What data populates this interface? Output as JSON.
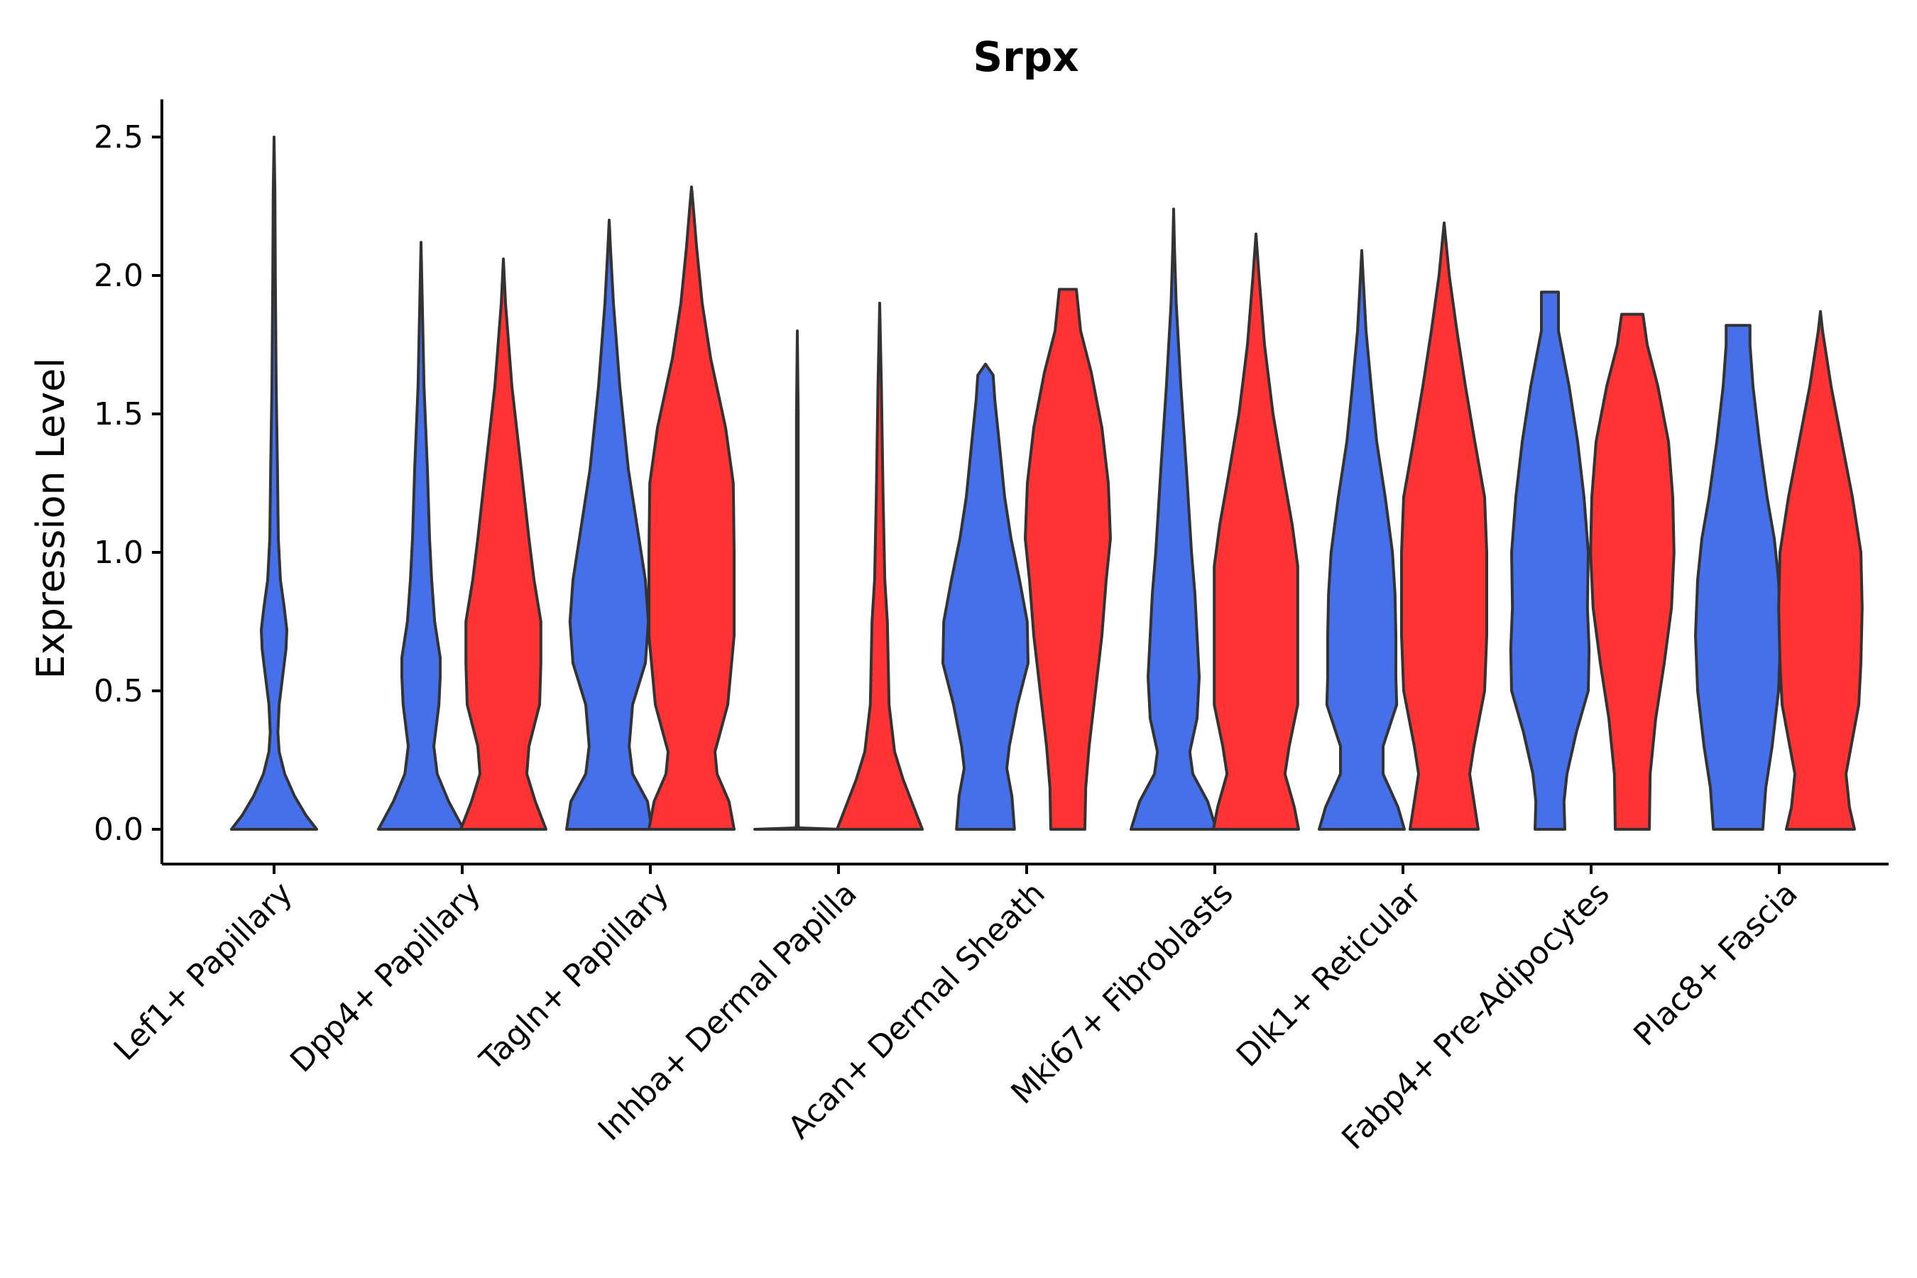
{
  "chart_data": {
    "type": "violin",
    "title": "Srpx",
    "ylabel": "Expression Level",
    "xlabel": "",
    "ylim": [
      0,
      2.5
    ],
    "yticks": [
      "0.0",
      "0.5",
      "1.0",
      "1.5",
      "2.0",
      "2.5"
    ],
    "grid": false,
    "legend": "none",
    "categories": [
      "Lef1+ Papillary",
      "Dpp4+ Papillary",
      "Tagln+ Papillary",
      "Inhba+ Dermal Papilla",
      "Acan+ Dermal Sheath",
      "Mki67+ Fibroblasts",
      "Dlk1+ Reticular",
      "Fabp4+ Pre-Adipocytes",
      "Plac8+ Fascia"
    ],
    "series": [
      {
        "name": "blue",
        "color": "#4570EA",
        "violins": [
          {
            "category": "Lef1+ Papillary",
            "max": 2.5,
            "profile": [
              [
                0,
                1
              ],
              [
                0.05,
                0.75
              ],
              [
                0.12,
                0.48
              ],
              [
                0.2,
                0.25
              ],
              [
                0.28,
                0.12
              ],
              [
                0.35,
                0.09
              ],
              [
                0.45,
                0.12
              ],
              [
                0.55,
                0.2
              ],
              [
                0.65,
                0.28
              ],
              [
                0.72,
                0.3
              ],
              [
                0.8,
                0.24
              ],
              [
                0.9,
                0.15
              ],
              [
                1.05,
                0.1
              ],
              [
                1.3,
                0.08
              ],
              [
                1.6,
                0.05
              ],
              [
                2.0,
                0.03
              ],
              [
                2.3,
                0.02
              ],
              [
                2.5,
                0
              ]
            ]
          },
          {
            "category": "Dpp4+ Papillary",
            "max": 2.12,
            "profile": [
              [
                0,
                1
              ],
              [
                0.1,
                0.65
              ],
              [
                0.2,
                0.38
              ],
              [
                0.3,
                0.3
              ],
              [
                0.45,
                0.42
              ],
              [
                0.55,
                0.45
              ],
              [
                0.62,
                0.45
              ],
              [
                0.75,
                0.32
              ],
              [
                0.9,
                0.25
              ],
              [
                1.05,
                0.2
              ],
              [
                1.3,
                0.15
              ],
              [
                1.6,
                0.07
              ],
              [
                1.9,
                0.03
              ],
              [
                2.12,
                0
              ]
            ]
          },
          {
            "category": "Tagln+ Papillary",
            "max": 2.2,
            "profile": [
              [
                0,
                1
              ],
              [
                0.1,
                0.9
              ],
              [
                0.2,
                0.55
              ],
              [
                0.3,
                0.47
              ],
              [
                0.45,
                0.55
              ],
              [
                0.6,
                0.85
              ],
              [
                0.75,
                0.92
              ],
              [
                0.9,
                0.85
              ],
              [
                1.05,
                0.7
              ],
              [
                1.3,
                0.45
              ],
              [
                1.6,
                0.25
              ],
              [
                1.9,
                0.1
              ],
              [
                2.1,
                0.03
              ],
              [
                2.2,
                0
              ]
            ]
          },
          {
            "category": "Inhba+ Dermal Papilla",
            "max": 1.8,
            "profile": [
              [
                0,
                1
              ],
              [
                0.005,
                0.03
              ],
              [
                0.02,
                0.02
              ],
              [
                0.5,
                0.02
              ],
              [
                1.0,
                0.02
              ],
              [
                1.5,
                0.02
              ],
              [
                1.8,
                0
              ]
            ]
          },
          {
            "category": "Acan+ Dermal Sheath",
            "max": 1.68,
            "profile": [
              [
                0,
                0.68
              ],
              [
                0.12,
                0.62
              ],
              [
                0.22,
                0.5
              ],
              [
                0.3,
                0.56
              ],
              [
                0.45,
                0.75
              ],
              [
                0.6,
                1.0
              ],
              [
                0.75,
                0.98
              ],
              [
                0.9,
                0.8
              ],
              [
                1.05,
                0.6
              ],
              [
                1.2,
                0.45
              ],
              [
                1.4,
                0.32
              ],
              [
                1.55,
                0.22
              ],
              [
                1.64,
                0.18
              ],
              [
                1.68,
                0
              ]
            ]
          },
          {
            "category": "Mki67+ Fibroblasts",
            "max": 2.24,
            "profile": [
              [
                0,
                1
              ],
              [
                0.1,
                0.8
              ],
              [
                0.2,
                0.45
              ],
              [
                0.28,
                0.38
              ],
              [
                0.4,
                0.55
              ],
              [
                0.55,
                0.6
              ],
              [
                0.7,
                0.55
              ],
              [
                0.85,
                0.5
              ],
              [
                1.0,
                0.42
              ],
              [
                1.3,
                0.3
              ],
              [
                1.6,
                0.17
              ],
              [
                1.9,
                0.06
              ],
              [
                2.1,
                0.02
              ],
              [
                2.24,
                0
              ]
            ]
          },
          {
            "category": "Dlk1+ Reticular",
            "max": 2.09,
            "profile": [
              [
                0,
                1
              ],
              [
                0.08,
                0.85
              ],
              [
                0.2,
                0.5
              ],
              [
                0.3,
                0.5
              ],
              [
                0.45,
                0.82
              ],
              [
                0.55,
                0.8
              ],
              [
                0.7,
                0.8
              ],
              [
                0.85,
                0.78
              ],
              [
                1.0,
                0.72
              ],
              [
                1.2,
                0.55
              ],
              [
                1.4,
                0.35
              ],
              [
                1.6,
                0.22
              ],
              [
                1.8,
                0.1
              ],
              [
                2.0,
                0.03
              ],
              [
                2.09,
                0
              ]
            ]
          },
          {
            "category": "Fabp4+ Pre-Adipocytes",
            "max": 1.94,
            "profile": [
              [
                0,
                0.35
              ],
              [
                0.1,
                0.33
              ],
              [
                0.2,
                0.4
              ],
              [
                0.35,
                0.62
              ],
              [
                0.5,
                0.9
              ],
              [
                0.65,
                0.92
              ],
              [
                0.8,
                0.88
              ],
              [
                1.0,
                0.9
              ],
              [
                1.2,
                0.8
              ],
              [
                1.4,
                0.65
              ],
              [
                1.6,
                0.45
              ],
              [
                1.8,
                0.2
              ],
              [
                1.94,
                0.2
              ]
            ]
          },
          {
            "category": "Plac8+ Fascia",
            "max": 1.82,
            "profile": [
              [
                0,
                0.58
              ],
              [
                0.15,
                0.65
              ],
              [
                0.3,
                0.8
              ],
              [
                0.5,
                0.95
              ],
              [
                0.7,
                1.0
              ],
              [
                0.9,
                0.95
              ],
              [
                1.05,
                0.85
              ],
              [
                1.2,
                0.68
              ],
              [
                1.4,
                0.5
              ],
              [
                1.6,
                0.35
              ],
              [
                1.75,
                0.28
              ],
              [
                1.82,
                0.28
              ]
            ]
          }
        ]
      },
      {
        "name": "red",
        "color": "#FF3333",
        "violins": [
          {
            "category": "Dpp4+ Papillary",
            "max": 2.06,
            "profile": [
              [
                0,
                1
              ],
              [
                0.1,
                0.75
              ],
              [
                0.2,
                0.55
              ],
              [
                0.3,
                0.6
              ],
              [
                0.45,
                0.85
              ],
              [
                0.6,
                0.88
              ],
              [
                0.75,
                0.88
              ],
              [
                0.9,
                0.72
              ],
              [
                1.05,
                0.6
              ],
              [
                1.3,
                0.42
              ],
              [
                1.6,
                0.2
              ],
              [
                1.9,
                0.05
              ],
              [
                2.06,
                0
              ]
            ]
          },
          {
            "category": "Tagln+ Papillary",
            "max": 2.32,
            "profile": [
              [
                0,
                1
              ],
              [
                0.1,
                0.88
              ],
              [
                0.2,
                0.6
              ],
              [
                0.28,
                0.55
              ],
              [
                0.45,
                0.85
              ],
              [
                0.7,
                1.0
              ],
              [
                1.0,
                1.0
              ],
              [
                1.25,
                0.98
              ],
              [
                1.45,
                0.8
              ],
              [
                1.7,
                0.45
              ],
              [
                1.9,
                0.25
              ],
              [
                2.1,
                0.12
              ],
              [
                2.25,
                0.04
              ],
              [
                2.32,
                0
              ]
            ]
          },
          {
            "category": "Inhba+ Dermal Papilla",
            "max": 1.9,
            "profile": [
              [
                0,
                1
              ],
              [
                0.08,
                0.8
              ],
              [
                0.18,
                0.55
              ],
              [
                0.28,
                0.35
              ],
              [
                0.45,
                0.22
              ],
              [
                0.6,
                0.2
              ],
              [
                0.75,
                0.18
              ],
              [
                0.9,
                0.12
              ],
              [
                1.2,
                0.08
              ],
              [
                1.6,
                0.04
              ],
              [
                1.9,
                0
              ]
            ]
          },
          {
            "category": "Acan+ Dermal Sheath",
            "max": 1.95,
            "profile": [
              [
                0,
                0.4
              ],
              [
                0.15,
                0.42
              ],
              [
                0.3,
                0.5
              ],
              [
                0.5,
                0.65
              ],
              [
                0.7,
                0.8
              ],
              [
                0.9,
                0.9
              ],
              [
                1.05,
                1.0
              ],
              [
                1.25,
                0.95
              ],
              [
                1.45,
                0.8
              ],
              [
                1.65,
                0.55
              ],
              [
                1.8,
                0.3
              ],
              [
                1.95,
                0.2
              ]
            ]
          },
          {
            "category": "Mki67+ Fibroblasts",
            "max": 2.15,
            "profile": [
              [
                0,
                1
              ],
              [
                0.08,
                0.9
              ],
              [
                0.2,
                0.68
              ],
              [
                0.3,
                0.78
              ],
              [
                0.45,
                0.98
              ],
              [
                0.6,
                0.98
              ],
              [
                0.8,
                0.98
              ],
              [
                0.95,
                0.98
              ],
              [
                1.1,
                0.85
              ],
              [
                1.3,
                0.62
              ],
              [
                1.5,
                0.4
              ],
              [
                1.75,
                0.2
              ],
              [
                2.0,
                0.07
              ],
              [
                2.15,
                0
              ]
            ]
          },
          {
            "category": "Dlk1+ Reticular",
            "max": 2.19,
            "profile": [
              [
                0,
                0.8
              ],
              [
                0.1,
                0.7
              ],
              [
                0.2,
                0.6
              ],
              [
                0.3,
                0.7
              ],
              [
                0.5,
                0.95
              ],
              [
                0.7,
                1.0
              ],
              [
                1.0,
                1.0
              ],
              [
                1.2,
                0.95
              ],
              [
                1.4,
                0.72
              ],
              [
                1.6,
                0.5
              ],
              [
                1.8,
                0.3
              ],
              [
                2.0,
                0.12
              ],
              [
                2.19,
                0
              ]
            ]
          },
          {
            "category": "Fabp4+ Pre-Adipocytes",
            "max": 1.86,
            "profile": [
              [
                0,
                0.4
              ],
              [
                0.2,
                0.42
              ],
              [
                0.4,
                0.55
              ],
              [
                0.6,
                0.75
              ],
              [
                0.8,
                0.92
              ],
              [
                1.0,
                0.98
              ],
              [
                1.2,
                0.95
              ],
              [
                1.4,
                0.85
              ],
              [
                1.6,
                0.6
              ],
              [
                1.75,
                0.35
              ],
              [
                1.86,
                0.25
              ]
            ]
          },
          {
            "category": "Plac8+ Fascia",
            "max": 1.87,
            "profile": [
              [
                0,
                0.8
              ],
              [
                0.08,
                0.68
              ],
              [
                0.2,
                0.6
              ],
              [
                0.3,
                0.72
              ],
              [
                0.45,
                0.9
              ],
              [
                0.6,
                0.95
              ],
              [
                0.8,
                0.98
              ],
              [
                1.0,
                0.95
              ],
              [
                1.2,
                0.75
              ],
              [
                1.4,
                0.5
              ],
              [
                1.6,
                0.25
              ],
              [
                1.8,
                0.05
              ],
              [
                1.87,
                0
              ]
            ]
          }
        ]
      }
    ]
  }
}
